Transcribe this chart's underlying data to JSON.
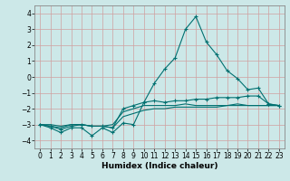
{
  "xlabel": "Humidex (Indice chaleur)",
  "x_values": [
    0,
    1,
    2,
    3,
    4,
    5,
    6,
    7,
    8,
    9,
    10,
    11,
    12,
    13,
    14,
    15,
    16,
    17,
    18,
    19,
    20,
    21,
    22,
    23
  ],
  "series1": [
    -3.0,
    -3.2,
    -3.5,
    -3.2,
    -3.2,
    -3.7,
    -3.2,
    -3.5,
    -2.9,
    -3.0,
    -1.6,
    -0.4,
    0.5,
    1.2,
    3.0,
    3.8,
    2.2,
    1.4,
    0.4,
    -0.1,
    -0.8,
    -0.7,
    -1.7,
    -1.8
  ],
  "series2": [
    -3.0,
    -3.1,
    -3.3,
    -3.1,
    -3.0,
    -3.1,
    -3.1,
    -3.2,
    -2.0,
    -1.8,
    -1.6,
    -1.5,
    -1.6,
    -1.5,
    -1.5,
    -1.4,
    -1.4,
    -1.3,
    -1.3,
    -1.3,
    -1.2,
    -1.2,
    -1.7,
    -1.8
  ],
  "series3": [
    -3.0,
    -3.0,
    -3.1,
    -3.0,
    -3.0,
    -3.1,
    -3.1,
    -3.0,
    -2.2,
    -2.0,
    -1.8,
    -1.8,
    -1.8,
    -1.8,
    -1.7,
    -1.8,
    -1.8,
    -1.8,
    -1.8,
    -1.7,
    -1.8,
    -1.8,
    -1.8,
    -1.8
  ],
  "series4": [
    -3.0,
    -3.1,
    -3.2,
    -3.0,
    -3.0,
    -3.1,
    -3.1,
    -3.2,
    -2.5,
    -2.3,
    -2.1,
    -2.0,
    -2.0,
    -1.9,
    -1.9,
    -1.9,
    -1.9,
    -1.9,
    -1.8,
    -1.8,
    -1.8,
    -1.8,
    -1.8,
    -1.8
  ],
  "color": "#007070",
  "bg_color": "#cce8e8",
  "grid_color": "#b8d0d0",
  "ylim": [
    -4.5,
    4.5
  ],
  "xlim": [
    -0.5,
    23.5
  ],
  "yticks": [
    -4,
    -3,
    -2,
    -1,
    0,
    1,
    2,
    3,
    4
  ],
  "xticks": [
    0,
    1,
    2,
    3,
    4,
    5,
    6,
    7,
    8,
    9,
    10,
    11,
    12,
    13,
    14,
    15,
    16,
    17,
    18,
    19,
    20,
    21,
    22,
    23
  ]
}
